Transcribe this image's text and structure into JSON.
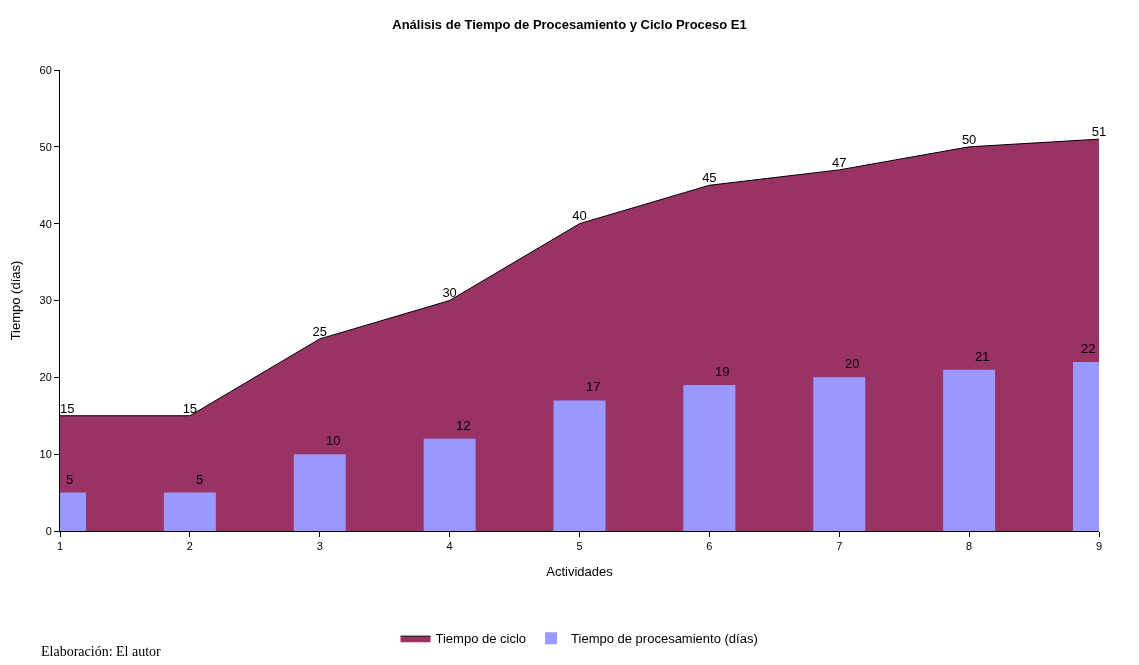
{
  "chart_data": {
    "type": "area",
    "title": "Análisis de Tiempo de Procesamiento y Ciclo Proceso E1",
    "xlabel": "Actividades",
    "ylabel": "Tiempo (días)",
    "x": [
      1,
      2,
      3,
      4,
      5,
      6,
      7,
      8,
      9
    ],
    "series": [
      {
        "name": "Tiempo de ciclo",
        "color": "#993366",
        "values": [
          15,
          15,
          25,
          30,
          40,
          45,
          47,
          50,
          51
        ]
      },
      {
        "name": "Tiempo de procesamiento (días)",
        "type": "bar",
        "color": "#9999ff",
        "values": [
          5,
          5,
          10,
          12,
          17,
          19,
          20,
          21,
          22
        ]
      }
    ],
    "xlim": [
      1,
      9
    ],
    "xticks": [
      1,
      2,
      3,
      4,
      5,
      6,
      7,
      8,
      9
    ],
    "ylim": [
      0,
      60
    ],
    "yticks": [
      0,
      10,
      20,
      30,
      40,
      50,
      60
    ],
    "legend": "bottom",
    "data_labels": true,
    "annotations": [
      "Elaboración: El autor"
    ]
  }
}
